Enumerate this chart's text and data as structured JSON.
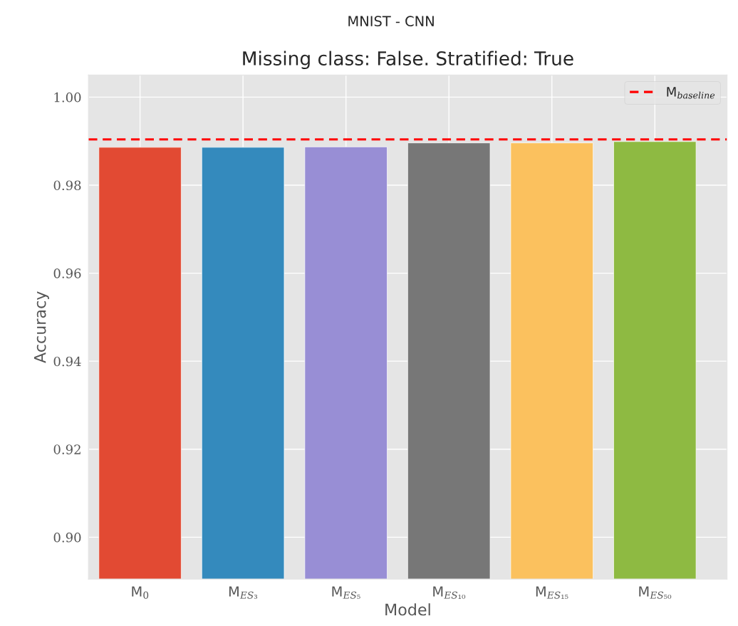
{
  "chart_data": {
    "type": "bar",
    "title": "MNIST - CNN",
    "subtitle": "Missing class: False. Stratified: True",
    "xlabel": "Model",
    "ylabel": "Accuracy",
    "categories": [
      "M$_{0}$",
      "M$_{ES₃}$",
      "M$_{ES₅}$",
      "M$_{ES₁₀}$",
      "M$_{ES₁₅}$",
      "M$_{ES₅₀}$"
    ],
    "values": [
      0.9886,
      0.9886,
      0.9887,
      0.9896,
      0.9896,
      0.9899
    ],
    "colors": [
      "#e24a33",
      "#348abd",
      "#988ed5",
      "#777777",
      "#fbc15e",
      "#8eba42"
    ],
    "ylim": [
      0.8905,
      1.005
    ],
    "yticks": [
      {
        "value": 0.9,
        "label": "0.90"
      },
      {
        "value": 0.92,
        "label": "0.92"
      },
      {
        "value": 0.94,
        "label": "0.94"
      },
      {
        "value": 0.96,
        "label": "0.96"
      },
      {
        "value": 0.98,
        "label": "0.98"
      },
      {
        "value": 1.0,
        "label": "1.00"
      }
    ],
    "ref_lines": [
      {
        "axis": "y",
        "value": 0.9904,
        "label": "M$_{baseline}$",
        "color": "#ff0000",
        "line_style": "dashed"
      }
    ],
    "grid": true,
    "legend": "top right"
  }
}
